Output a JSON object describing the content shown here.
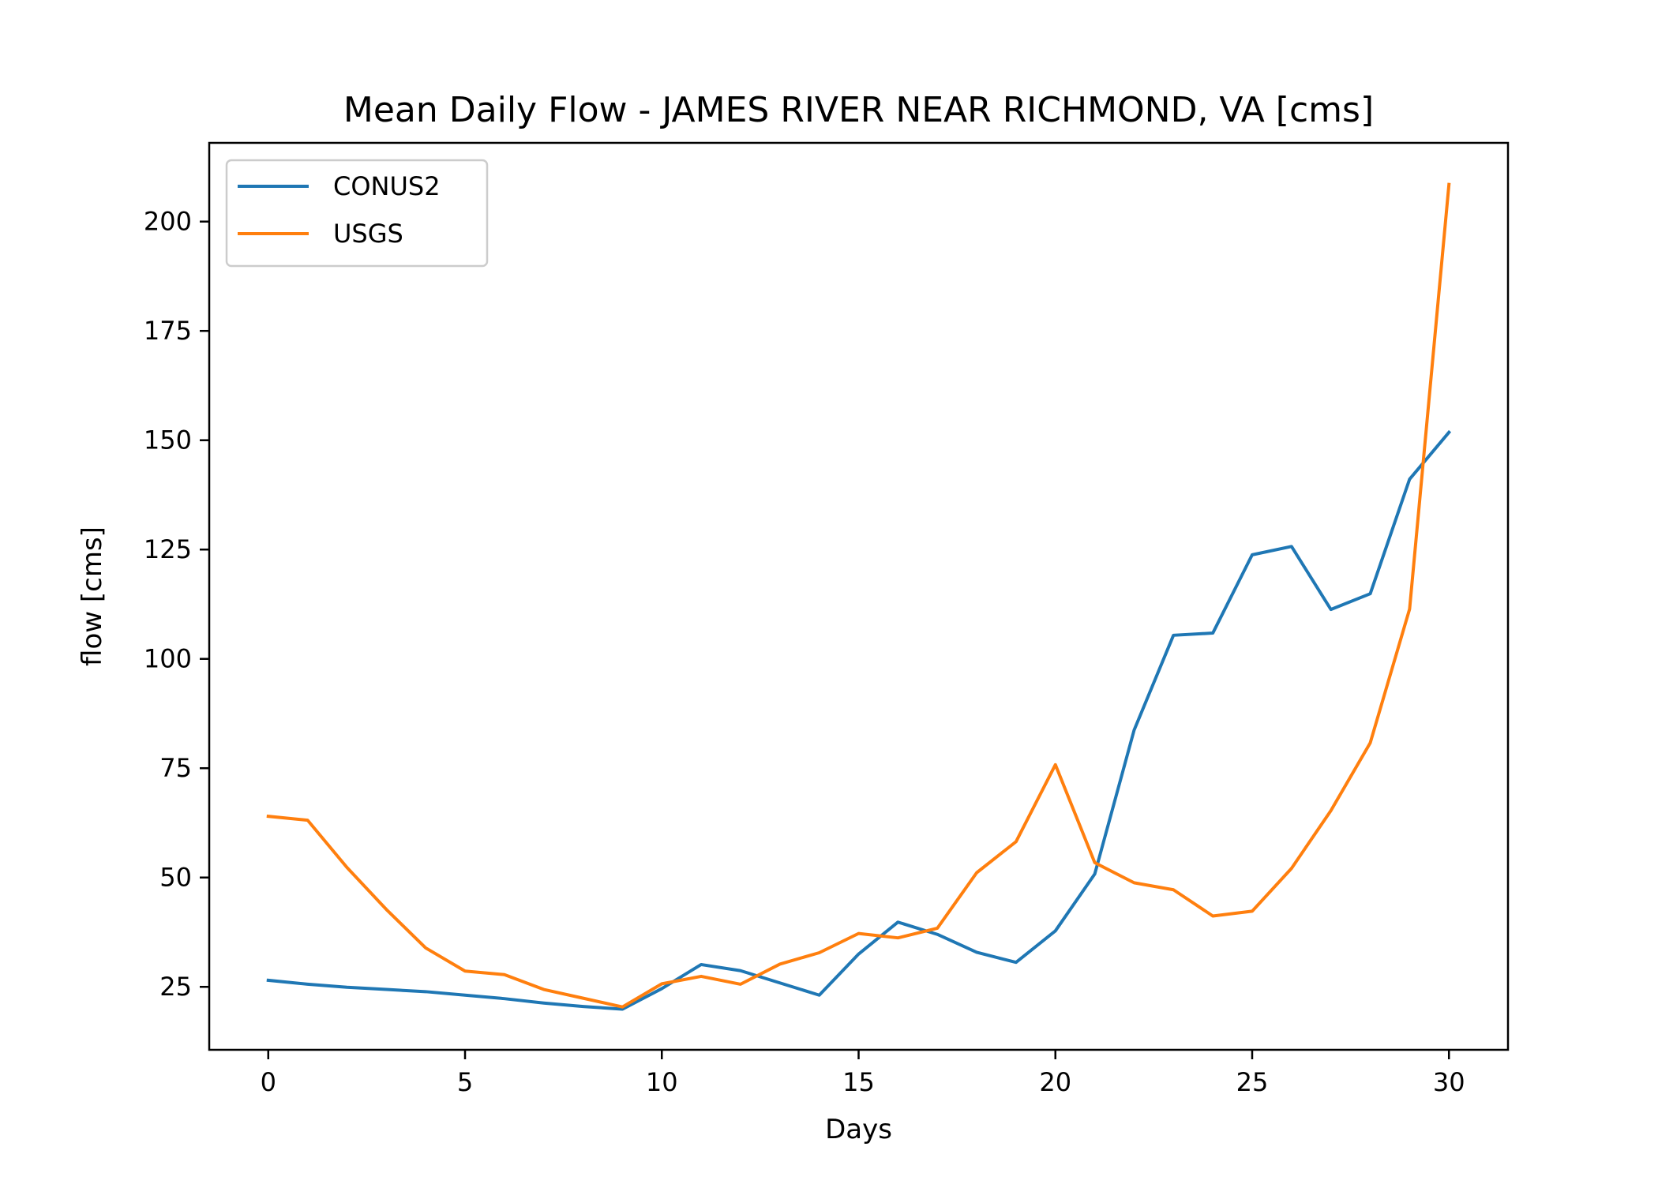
{
  "chart_data": {
    "type": "line",
    "title": "Mean Daily Flow - JAMES RIVER NEAR RICHMOND, VA [cms]",
    "xlabel": "Days",
    "ylabel": "flow [cms]",
    "xlim": [
      -1.5,
      31.5
    ],
    "ylim": [
      10.6,
      218
    ],
    "xticks": [
      0,
      5,
      10,
      15,
      20,
      25,
      30
    ],
    "yticks": [
      25,
      50,
      75,
      100,
      125,
      150,
      175,
      200
    ],
    "grid": false,
    "legend_position": "top-left",
    "x": [
      0,
      1,
      2,
      3,
      4,
      5,
      6,
      7,
      8,
      9,
      10,
      11,
      12,
      13,
      14,
      15,
      16,
      17,
      18,
      19,
      20,
      21,
      22,
      23,
      24,
      25,
      26,
      27,
      28,
      29,
      30
    ],
    "series": [
      {
        "name": "CONUS2",
        "color": "#1f77b4",
        "values": [
          26.5,
          25.6,
          24.9,
          24.4,
          23.9,
          23.1,
          22.3,
          21.3,
          20.5,
          19.9,
          24.6,
          30.1,
          28.7,
          25.9,
          23.1,
          32.5,
          39.8,
          37.0,
          32.9,
          30.6,
          37.8,
          50.8,
          83.7,
          105.4,
          105.9,
          123.8,
          125.7,
          111.3,
          114.9,
          141.1,
          151.8
        ]
      },
      {
        "name": "USGS",
        "color": "#ff7f0e",
        "values": [
          64.0,
          63.1,
          52.3,
          42.7,
          33.9,
          28.6,
          27.8,
          24.4,
          22.4,
          20.4,
          25.7,
          27.4,
          25.6,
          30.2,
          32.8,
          37.2,
          36.2,
          38.4,
          51.1,
          58.2,
          75.8,
          53.4,
          48.8,
          47.2,
          41.2,
          42.3,
          52.1,
          65.3,
          80.8,
          111.4,
          208.5
        ]
      }
    ]
  }
}
